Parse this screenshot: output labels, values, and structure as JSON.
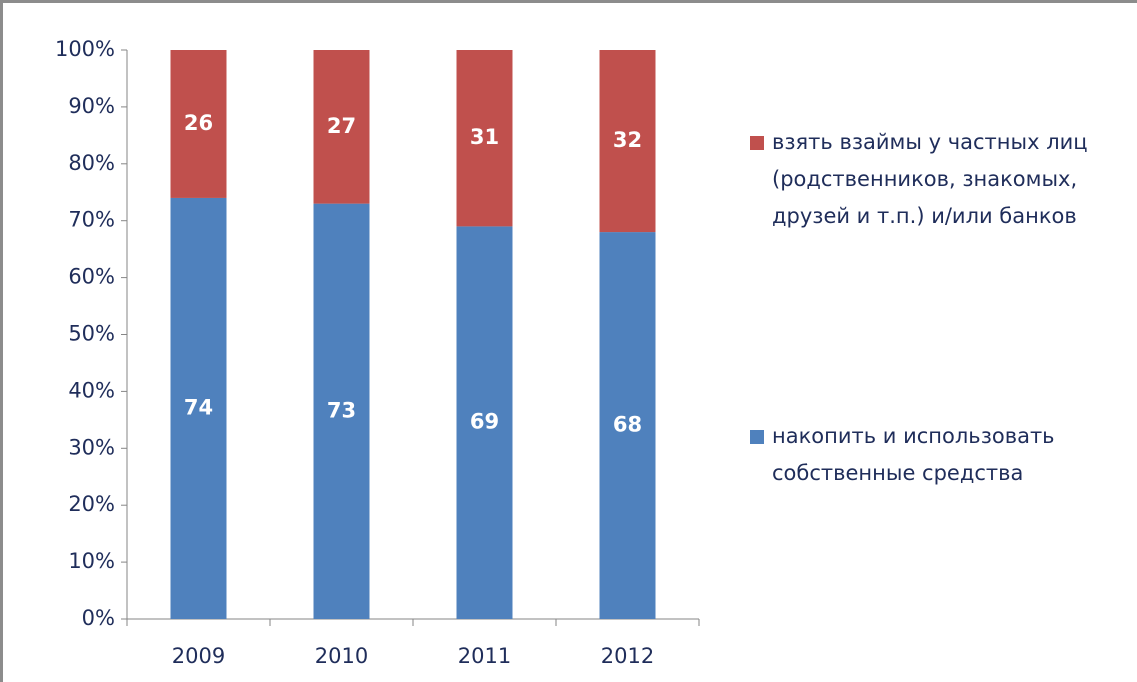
{
  "chart_data": {
    "type": "bar",
    "stacked": true,
    "categories": [
      "2009",
      "2010",
      "2011",
      "2012"
    ],
    "series": [
      {
        "name": "накопить и использовать собственные средства",
        "color": "#4f81bd",
        "values": [
          74,
          73,
          69,
          68
        ]
      },
      {
        "name": "взять взаймы у частных лиц (родственников, знакомых, друзей и т.п.) и/или банков",
        "color": "#c0504d",
        "values": [
          26,
          27,
          31,
          32
        ]
      }
    ],
    "ylim": [
      0,
      100
    ],
    "yticks": [
      {
        "value": 0,
        "label": "0%"
      },
      {
        "value": 10,
        "label": "10%"
      },
      {
        "value": 20,
        "label": "20%"
      },
      {
        "value": 30,
        "label": "30%"
      },
      {
        "value": 40,
        "label": "40%"
      },
      {
        "value": 50,
        "label": "50%"
      },
      {
        "value": 60,
        "label": "60%"
      },
      {
        "value": 70,
        "label": "70%"
      },
      {
        "value": 80,
        "label": "80%"
      },
      {
        "value": 90,
        "label": "90%"
      },
      {
        "value": 100,
        "label": "100%"
      }
    ],
    "grid": false,
    "legend": "right"
  }
}
